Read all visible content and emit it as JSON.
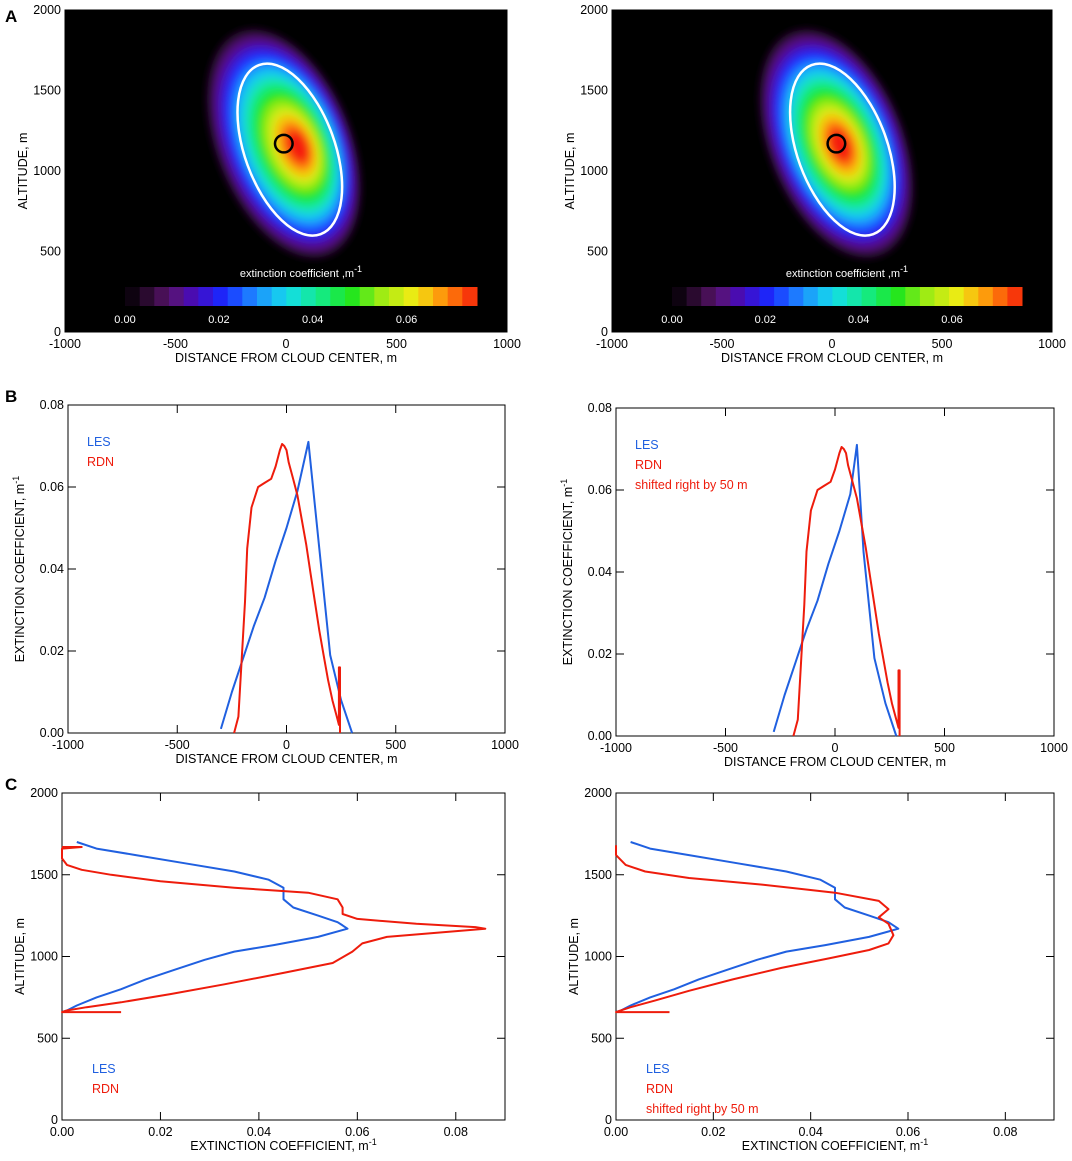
{
  "colors": {
    "les": "#2060e0",
    "rdn": "#ee1c0c",
    "contour": "#ffffff",
    "frame": "#000000"
  },
  "panel_letters": [
    "A",
    "B",
    "C"
  ],
  "chart_data": [
    {
      "id": "A1",
      "type": "heatmap",
      "panel": "A",
      "xlabel": "DISTANCE FROM CLOUD CENTER, m",
      "ylabel": "ALTITUDE, m",
      "xlim": [
        -1000,
        1000
      ],
      "ylim": [
        0,
        2000
      ],
      "xticks": [
        "-1000",
        "-500",
        "0",
        "500",
        "1000"
      ],
      "yticks": [
        "0",
        "500",
        "1000",
        "1500",
        "2000"
      ],
      "colorbar": {
        "label": "extinction coefficient ,m",
        "label_sup": "-1",
        "range": [
          0,
          0.075
        ],
        "ticks": [
          "0.00",
          "0.02",
          "0.04",
          "0.06"
        ]
      },
      "blob": {
        "center": [
          -10,
          1170
        ],
        "peak": [
          60,
          1150
        ],
        "peak_value": 0.072
      },
      "circle": {
        "center": [
          -10,
          1170
        ],
        "radius": 40
      }
    },
    {
      "id": "A2",
      "type": "heatmap",
      "panel": "A",
      "xlabel": "DISTANCE FROM CLOUD CENTER, m",
      "ylabel": "ALTITUDE, m",
      "xlim": [
        -1000,
        1000
      ],
      "ylim": [
        0,
        2000
      ],
      "xticks": [
        "-1000",
        "-500",
        "0",
        "500",
        "1000"
      ],
      "yticks": [
        "0",
        "500",
        "1000",
        "1500",
        "2000"
      ],
      "colorbar": {
        "label": "extinction coefficient ,m",
        "label_sup": "-1",
        "range": [
          0,
          0.075
        ],
        "ticks": [
          "0.00",
          "0.02",
          "0.04",
          "0.06"
        ]
      },
      "blob": {
        "center": [
          20,
          1170
        ],
        "peak": [
          40,
          1160
        ],
        "peak_value": 0.072
      },
      "circle": {
        "center": [
          20,
          1170
        ],
        "radius": 40
      }
    },
    {
      "id": "B1",
      "type": "line",
      "panel": "B",
      "xlabel": "DISTANCE FROM CLOUD CENTER, m",
      "ylabel": "EXTINCTION COEFFICIENT, m",
      "ylabel_sup": "-1",
      "xlim": [
        -1000,
        1000
      ],
      "ylim": [
        0,
        0.08
      ],
      "xticks": [
        "-1000",
        "-500",
        "0",
        "500",
        "1000"
      ],
      "yticks": [
        "0.00",
        "0.02",
        "0.04",
        "0.06",
        "0.08"
      ],
      "legend": [
        "LES",
        "RDN"
      ],
      "series": [
        {
          "name": "LES",
          "x": [
            -300,
            -250,
            -200,
            -150,
            -100,
            -50,
            0,
            50,
            100,
            150,
            200,
            250,
            300
          ],
          "y": [
            0.001,
            0.01,
            0.018,
            0.026,
            0.033,
            0.042,
            0.05,
            0.059,
            0.071,
            0.045,
            0.019,
            0.008,
            0.0
          ]
        },
        {
          "name": "RDN",
          "x": [
            -240,
            -220,
            -190,
            -180,
            -160,
            -130,
            -100,
            -70,
            -50,
            -30,
            -20,
            -10,
            0,
            10,
            30,
            50,
            70,
            90,
            110,
            130,
            150,
            170,
            190,
            210,
            230,
            240,
            240,
            245,
            245
          ],
          "y": [
            0.0,
            0.004,
            0.032,
            0.045,
            0.055,
            0.06,
            0.061,
            0.062,
            0.065,
            0.069,
            0.0705,
            0.07,
            0.069,
            0.066,
            0.062,
            0.058,
            0.052,
            0.046,
            0.039,
            0.032,
            0.025,
            0.019,
            0.013,
            0.008,
            0.004,
            0.002,
            0.016,
            0.016,
            0.0
          ]
        }
      ]
    },
    {
      "id": "B2",
      "type": "line",
      "panel": "B",
      "xlabel": "DISTANCE FROM CLOUD CENTER, m",
      "ylabel": "EXTINCTION COEFFICIENT, m",
      "ylabel_sup": "-1",
      "xlim": [
        -1000,
        1000
      ],
      "ylim": [
        0,
        0.08
      ],
      "xticks": [
        "-1000",
        "-500",
        "0",
        "500",
        "1000"
      ],
      "yticks": [
        "0.00",
        "0.02",
        "0.04",
        "0.06",
        "0.08"
      ],
      "legend": [
        "LES",
        "RDN",
        "shifted right by 50 m"
      ],
      "series": [
        {
          "name": "LES",
          "x": [
            -280,
            -230,
            -180,
            -130,
            -80,
            -30,
            20,
            70,
            100,
            130,
            180,
            230,
            280
          ],
          "y": [
            0.001,
            0.01,
            0.018,
            0.026,
            0.033,
            0.042,
            0.05,
            0.059,
            0.071,
            0.045,
            0.019,
            0.008,
            0.0
          ]
        },
        {
          "name": "RDN",
          "x": [
            -190,
            -170,
            -140,
            -130,
            -110,
            -80,
            -50,
            -20,
            0,
            20,
            30,
            40,
            50,
            60,
            80,
            100,
            120,
            140,
            160,
            180,
            200,
            220,
            240,
            260,
            280,
            290,
            290,
            295,
            295
          ],
          "y": [
            0.0,
            0.004,
            0.032,
            0.045,
            0.055,
            0.06,
            0.061,
            0.062,
            0.065,
            0.069,
            0.0705,
            0.07,
            0.069,
            0.066,
            0.062,
            0.058,
            0.052,
            0.046,
            0.039,
            0.032,
            0.025,
            0.019,
            0.013,
            0.008,
            0.004,
            0.002,
            0.016,
            0.016,
            0.0
          ]
        }
      ]
    },
    {
      "id": "C1",
      "type": "line",
      "panel": "C",
      "xlabel": "EXTINCTION COEFFICIENT, m",
      "xlabel_sup": "-1",
      "ylabel": "ALTITUDE, m",
      "xlim": [
        0,
        0.09
      ],
      "ylim": [
        0,
        2000
      ],
      "xticks": [
        "0.00",
        "0.02",
        "0.04",
        "0.06",
        "0.08"
      ],
      "yticks": [
        "0",
        "500",
        "1000",
        "1500",
        "2000"
      ],
      "legend": [
        "LES",
        "RDN"
      ],
      "series": [
        {
          "name": "LES",
          "x": [
            0.003,
            0.007,
            0.015,
            0.025,
            0.035,
            0.042,
            0.045,
            0.045,
            0.047,
            0.052,
            0.056,
            0.057,
            0.058,
            0.052,
            0.043,
            0.035,
            0.029,
            0.023,
            0.017,
            0.012,
            0.007,
            0.003,
            0.001,
            0.0
          ],
          "y": [
            1700,
            1660,
            1620,
            1570,
            1520,
            1470,
            1420,
            1350,
            1300,
            1250,
            1210,
            1190,
            1170,
            1120,
            1070,
            1030,
            980,
            920,
            860,
            800,
            750,
            700,
            670,
            660
          ]
        },
        {
          "name": "RDN",
          "x": [
            0.0,
            0.004,
            0.0,
            0.0,
            0.001,
            0.004,
            0.01,
            0.02,
            0.035,
            0.05,
            0.056,
            0.057,
            0.057,
            0.06,
            0.072,
            0.084,
            0.086,
            0.078,
            0.066,
            0.061,
            0.059,
            0.055,
            0.045,
            0.033,
            0.022,
            0.012,
            0.005,
            0.001,
            0.0,
            0.012
          ],
          "y": [
            1670,
            1670,
            1660,
            1600,
            1560,
            1530,
            1500,
            1460,
            1420,
            1390,
            1350,
            1300,
            1260,
            1230,
            1200,
            1180,
            1170,
            1150,
            1120,
            1080,
            1030,
            960,
            900,
            830,
            770,
            720,
            690,
            670,
            660,
            660
          ]
        }
      ]
    },
    {
      "id": "C2",
      "type": "line",
      "panel": "C",
      "xlabel": "EXTINCTION COEFFICIENT, m",
      "xlabel_sup": "-1",
      "ylabel": "ALTITUDE, m",
      "xlim": [
        0,
        0.09
      ],
      "ylim": [
        0,
        2000
      ],
      "xticks": [
        "0.00",
        "0.02",
        "0.04",
        "0.06",
        "0.08"
      ],
      "yticks": [
        "0",
        "500",
        "1000",
        "1500",
        "2000"
      ],
      "legend": [
        "LES",
        "RDN",
        "shifted right by 50 m"
      ],
      "series": [
        {
          "name": "LES",
          "x": [
            0.003,
            0.007,
            0.015,
            0.025,
            0.035,
            0.042,
            0.045,
            0.045,
            0.047,
            0.052,
            0.056,
            0.057,
            0.058,
            0.052,
            0.043,
            0.035,
            0.029,
            0.023,
            0.017,
            0.012,
            0.007,
            0.003,
            0.001,
            0.0
          ],
          "y": [
            1700,
            1660,
            1620,
            1570,
            1520,
            1470,
            1420,
            1350,
            1300,
            1250,
            1210,
            1190,
            1170,
            1120,
            1070,
            1030,
            980,
            920,
            860,
            800,
            750,
            700,
            670,
            660
          ]
        },
        {
          "name": "RDN",
          "x": [
            0.0,
            0.0,
            0.002,
            0.006,
            0.015,
            0.03,
            0.045,
            0.054,
            0.056,
            0.054,
            0.056,
            0.057,
            0.056,
            0.052,
            0.044,
            0.034,
            0.024,
            0.015,
            0.008,
            0.003,
            0.0,
            0.011
          ],
          "y": [
            1680,
            1620,
            1560,
            1520,
            1480,
            1440,
            1390,
            1340,
            1290,
            1240,
            1200,
            1130,
            1080,
            1040,
            990,
            930,
            860,
            790,
            730,
            690,
            660,
            660
          ]
        }
      ]
    }
  ]
}
